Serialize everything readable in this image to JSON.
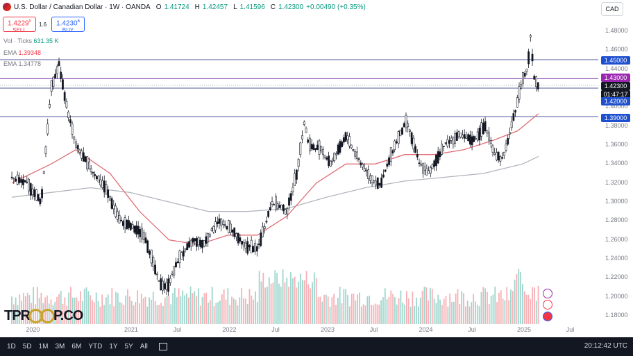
{
  "header": {
    "title": "U.S. Dollar / Canadian Dollar · 1W · OANDA",
    "open_label": "O",
    "open": "1.41724",
    "high_label": "H",
    "high": "1.42457",
    "low_label": "L",
    "low": "1.41596",
    "close_label": "C",
    "close": "1.42300",
    "change": "+0.00490 (+0.35%)"
  },
  "trade": {
    "sell_price": "1.4229",
    "sell_sup": "0",
    "sell_label": "SELL",
    "spread": "1.6",
    "buy_price": "1.4230",
    "buy_sup": "6",
    "buy_label": "BUY"
  },
  "indicators": {
    "vol_label": "Vol · Ticks",
    "vol_value": "631.35 K",
    "ema1_label": "EMA",
    "ema1_value": "1.39348",
    "ema2_label": "EMA",
    "ema2_value": "1.34778"
  },
  "currency_button": "CAD",
  "price_tags": {
    "level_1": "1.45000",
    "level_2": "1.43000",
    "last": "1.42300",
    "countdown": "01:47:17",
    "level_3": "1.42000",
    "level_4": "1.39000"
  },
  "bottom_bar": {
    "timeframes": [
      "1D",
      "5D",
      "1M",
      "3M",
      "6M",
      "YTD",
      "1Y",
      "5Y",
      "All"
    ],
    "clock": "20:12:42 UTC"
  },
  "logo": {
    "left": "TPR",
    "right": "P.CO"
  },
  "colors": {
    "up": "#131722",
    "down": "#131722",
    "ema_fast": "#e06c75",
    "ema_slow": "#b2b5be",
    "vol_up": "#8ecfc4",
    "vol_down": "#f4a3a9",
    "hline": "#2a2e39",
    "accent": "#2962ff",
    "tag_level": "#1e4fcf",
    "tag_mid": "#9c27b0",
    "tag_last": "#131722"
  },
  "icons": [
    "us-ca-flag-icon",
    "lightning-icon",
    "calendar-icon",
    "flag-icon",
    "date-range-icon"
  ],
  "chart_data": {
    "type": "candlestick",
    "title": "U.S. Dollar / Canadian Dollar · 1W · OANDA",
    "ylim": [
      1.18,
      1.48
    ],
    "yticks": [
      "1.48000",
      "1.46000",
      "1.44000",
      "1.42000",
      "1.40000",
      "1.38000",
      "1.36000",
      "1.34000",
      "1.32000",
      "1.30000",
      "1.28000",
      "1.26000",
      "1.24000",
      "1.22000",
      "1.20000",
      "1.18000"
    ],
    "xticks": [
      "2020",
      "2021",
      "Jul",
      "2022",
      "Jul",
      "2023",
      "Jul",
      "2024",
      "Jul",
      "2025",
      "Jul"
    ],
    "horizontal_levels": [
      1.45,
      1.43,
      1.42,
      1.39
    ],
    "price_path": [
      [
        2019.8,
        1.325
      ],
      [
        2019.95,
        1.32
      ],
      [
        2020.1,
        1.3
      ],
      [
        2020.2,
        1.42
      ],
      [
        2020.28,
        1.445
      ],
      [
        2020.36,
        1.4
      ],
      [
        2020.45,
        1.36
      ],
      [
        2020.6,
        1.335
      ],
      [
        2020.75,
        1.315
      ],
      [
        2020.9,
        1.28
      ],
      [
        2021.0,
        1.275
      ],
      [
        2021.15,
        1.265
      ],
      [
        2021.3,
        1.215
      ],
      [
        2021.38,
        1.21
      ],
      [
        2021.5,
        1.24
      ],
      [
        2021.65,
        1.26
      ],
      [
        2021.75,
        1.255
      ],
      [
        2021.9,
        1.28
      ],
      [
        2022.05,
        1.27
      ],
      [
        2022.15,
        1.255
      ],
      [
        2022.3,
        1.25
      ],
      [
        2022.45,
        1.3
      ],
      [
        2022.6,
        1.29
      ],
      [
        2022.7,
        1.33
      ],
      [
        2022.78,
        1.385
      ],
      [
        2022.82,
        1.36
      ],
      [
        2022.95,
        1.355
      ],
      [
        2023.05,
        1.34
      ],
      [
        2023.2,
        1.37
      ],
      [
        2023.3,
        1.35
      ],
      [
        2023.45,
        1.325
      ],
      [
        2023.55,
        1.318
      ],
      [
        2023.7,
        1.36
      ],
      [
        2023.82,
        1.385
      ],
      [
        2023.95,
        1.34
      ],
      [
        2024.05,
        1.33
      ],
      [
        2024.2,
        1.36
      ],
      [
        2024.35,
        1.37
      ],
      [
        2024.5,
        1.365
      ],
      [
        2024.62,
        1.38
      ],
      [
        2024.72,
        1.35
      ],
      [
        2024.8,
        1.345
      ],
      [
        2024.9,
        1.385
      ],
      [
        2025.0,
        1.43
      ],
      [
        2025.05,
        1.44
      ],
      [
        2025.08,
        1.475
      ],
      [
        2025.12,
        1.43
      ],
      [
        2025.16,
        1.423
      ]
    ],
    "ema_fast": [
      [
        2019.8,
        1.32
      ],
      [
        2020.2,
        1.34
      ],
      [
        2020.45,
        1.355
      ],
      [
        2020.8,
        1.33
      ],
      [
        2021.1,
        1.29
      ],
      [
        2021.4,
        1.26
      ],
      [
        2021.7,
        1.255
      ],
      [
        2022.0,
        1.265
      ],
      [
        2022.3,
        1.265
      ],
      [
        2022.6,
        1.285
      ],
      [
        2022.9,
        1.32
      ],
      [
        2023.2,
        1.34
      ],
      [
        2023.5,
        1.34
      ],
      [
        2023.8,
        1.35
      ],
      [
        2024.1,
        1.35
      ],
      [
        2024.4,
        1.355
      ],
      [
        2024.7,
        1.365
      ],
      [
        2024.95,
        1.375
      ],
      [
        2025.16,
        1.393
      ]
    ],
    "ema_slow": [
      [
        2019.8,
        1.305
      ],
      [
        2020.2,
        1.31
      ],
      [
        2020.6,
        1.315
      ],
      [
        2021.0,
        1.31
      ],
      [
        2021.4,
        1.3
      ],
      [
        2021.8,
        1.29
      ],
      [
        2022.2,
        1.29
      ],
      [
        2022.6,
        1.293
      ],
      [
        2023.0,
        1.305
      ],
      [
        2023.4,
        1.315
      ],
      [
        2023.8,
        1.322
      ],
      [
        2024.2,
        1.326
      ],
      [
        2024.6,
        1.33
      ],
      [
        2025.0,
        1.34
      ],
      [
        2025.16,
        1.348
      ]
    ]
  }
}
